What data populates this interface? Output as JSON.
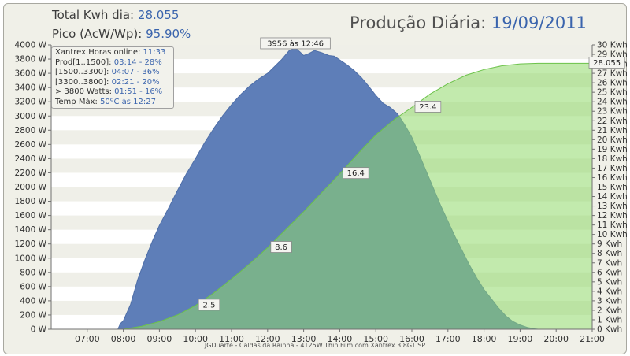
{
  "header": {
    "total_label": "Total Kwh dia:",
    "total_value": "28.055",
    "peak_label": "Pico (AcW/Wp):",
    "peak_value": "95.90%",
    "title_label": "Produção Diária:",
    "title_date": "19/09/2011"
  },
  "legend_rows": [
    {
      "label": "Xantrex Horas online:",
      "value": "11:33"
    },
    {
      "label": "Prod[1..1500]:",
      "value": "03:14 - 28%"
    },
    {
      "label": "[1500..3300]:",
      "value": "04:07 - 36%"
    },
    {
      "label": "[3300..3800]:",
      "value": "02:21 - 20%"
    },
    {
      "label": "> 3800 Watts:",
      "value": "01:51 - 16%"
    },
    {
      "label": "Temp Máx:",
      "value": "50ºC às 12:27"
    }
  ],
  "footer": "JGDuarte  -  Caldas da Rainha  -  4125W Thin Film com Xantrex 3.8GT SP",
  "chart_data": {
    "type": "area",
    "x_unit": "time of day (hours)",
    "xlim": [
      6.0,
      21.0
    ],
    "x_ticks": [
      "07:00",
      "08:00",
      "09:00",
      "10:00",
      "11:00",
      "12:00",
      "13:00",
      "14:00",
      "15:00",
      "16:00",
      "17:00",
      "18:00",
      "19:00",
      "20:00",
      "21:00"
    ],
    "ylim_left": [
      0,
      4000
    ],
    "ylim_right": [
      0,
      30
    ],
    "y_ticks_left": [
      "0 W",
      "200 W",
      "400 W",
      "600 W",
      "800 W",
      "1000 W",
      "1200 W",
      "1400 W",
      "1600 W",
      "1800 W",
      "2000 W",
      "2200 W",
      "2400 W",
      "2600 W",
      "2800 W",
      "3000 W",
      "3200 W",
      "3400 W",
      "3600 W",
      "3800 W",
      "4000 W"
    ],
    "y_ticks_right": [
      "0 Kwh",
      "1 Kwh",
      "2 Kwh",
      "3 Kwh",
      "4 Kwh",
      "5 Kwh",
      "6 Kwh",
      "7 Kwh",
      "8 Kwh",
      "9 Kwh",
      "10 Kwh",
      "11 Kwh",
      "12 Kwh",
      "13 Kwh",
      "14 Kwh",
      "15 Kwh",
      "16 Kwh",
      "17 Kwh",
      "18 Kwh",
      "19 Kwh",
      "20 Kwh",
      "21 Kwh",
      "22 Kwh",
      "23 Kwh",
      "24 Kwh",
      "25 Kwh",
      "26 Kwh",
      "27 Kwh",
      "28 Kwh",
      "29 Kwh",
      "30 Kwh"
    ],
    "grid": "horizontal bands",
    "series": [
      {
        "axis": "left",
        "color": "#5e7eb8",
        "x": [
          7.85,
          7.92,
          8.0,
          8.2,
          8.4,
          8.6,
          8.8,
          9.0,
          9.25,
          9.5,
          9.75,
          10.0,
          10.25,
          10.5,
          10.75,
          11.0,
          11.25,
          11.5,
          11.75,
          12.0,
          12.2,
          12.4,
          12.6,
          12.77,
          12.9,
          13.0,
          13.15,
          13.3,
          13.5,
          13.7,
          13.85,
          14.0,
          14.2,
          14.4,
          14.6,
          14.8,
          15.0,
          15.2,
          15.4,
          15.6,
          15.8,
          16.0,
          16.2,
          16.4,
          16.6,
          16.8,
          17.0,
          17.2,
          17.4,
          17.6,
          17.8,
          18.0,
          18.2,
          18.4,
          18.6,
          18.8,
          19.0,
          19.2,
          19.4,
          19.5
        ],
        "values": [
          0,
          80,
          120,
          350,
          700,
          980,
          1230,
          1460,
          1700,
          1950,
          2190,
          2400,
          2620,
          2820,
          3000,
          3160,
          3300,
          3420,
          3520,
          3600,
          3700,
          3800,
          3920,
          3956,
          3900,
          3850,
          3880,
          3920,
          3890,
          3850,
          3840,
          3790,
          3720,
          3640,
          3540,
          3420,
          3290,
          3180,
          3120,
          3030,
          2880,
          2700,
          2460,
          2220,
          1980,
          1740,
          1520,
          1300,
          1100,
          900,
          720,
          560,
          430,
          300,
          190,
          110,
          60,
          25,
          5,
          0
        ]
      },
      {
        "axis": "right",
        "color": "#8fd86a",
        "x": [
          8.0,
          8.5,
          9.0,
          9.5,
          10.0,
          10.5,
          11.0,
          11.5,
          12.0,
          12.5,
          13.0,
          13.5,
          14.0,
          14.5,
          15.0,
          15.5,
          16.0,
          16.5,
          17.0,
          17.5,
          18.0,
          18.5,
          19.0,
          19.5,
          20.0,
          21.0
        ],
        "values": [
          0,
          0.3,
          0.8,
          1.5,
          2.5,
          3.8,
          5.3,
          6.9,
          8.6,
          10.5,
          12.4,
          14.4,
          16.4,
          18.5,
          20.5,
          22.1,
          23.4,
          24.8,
          25.9,
          26.8,
          27.4,
          27.8,
          28.0,
          28.055,
          28.055,
          28.055
        ]
      }
    ],
    "annotations": [
      {
        "x": 12.77,
        "y_left": 3956,
        "text": "3956 às 12:46"
      },
      {
        "x": 10.0,
        "y_right": 2.5,
        "text": "2.5"
      },
      {
        "x": 12.0,
        "y_right": 8.6,
        "text": "8.6"
      },
      {
        "x": 14.0,
        "y_right": 16.4,
        "text": "16.4"
      },
      {
        "x": 16.0,
        "y_right": 23.4,
        "text": "23.4"
      },
      {
        "x": 21.0,
        "y_right": 28.055,
        "text": "28.055"
      }
    ]
  }
}
